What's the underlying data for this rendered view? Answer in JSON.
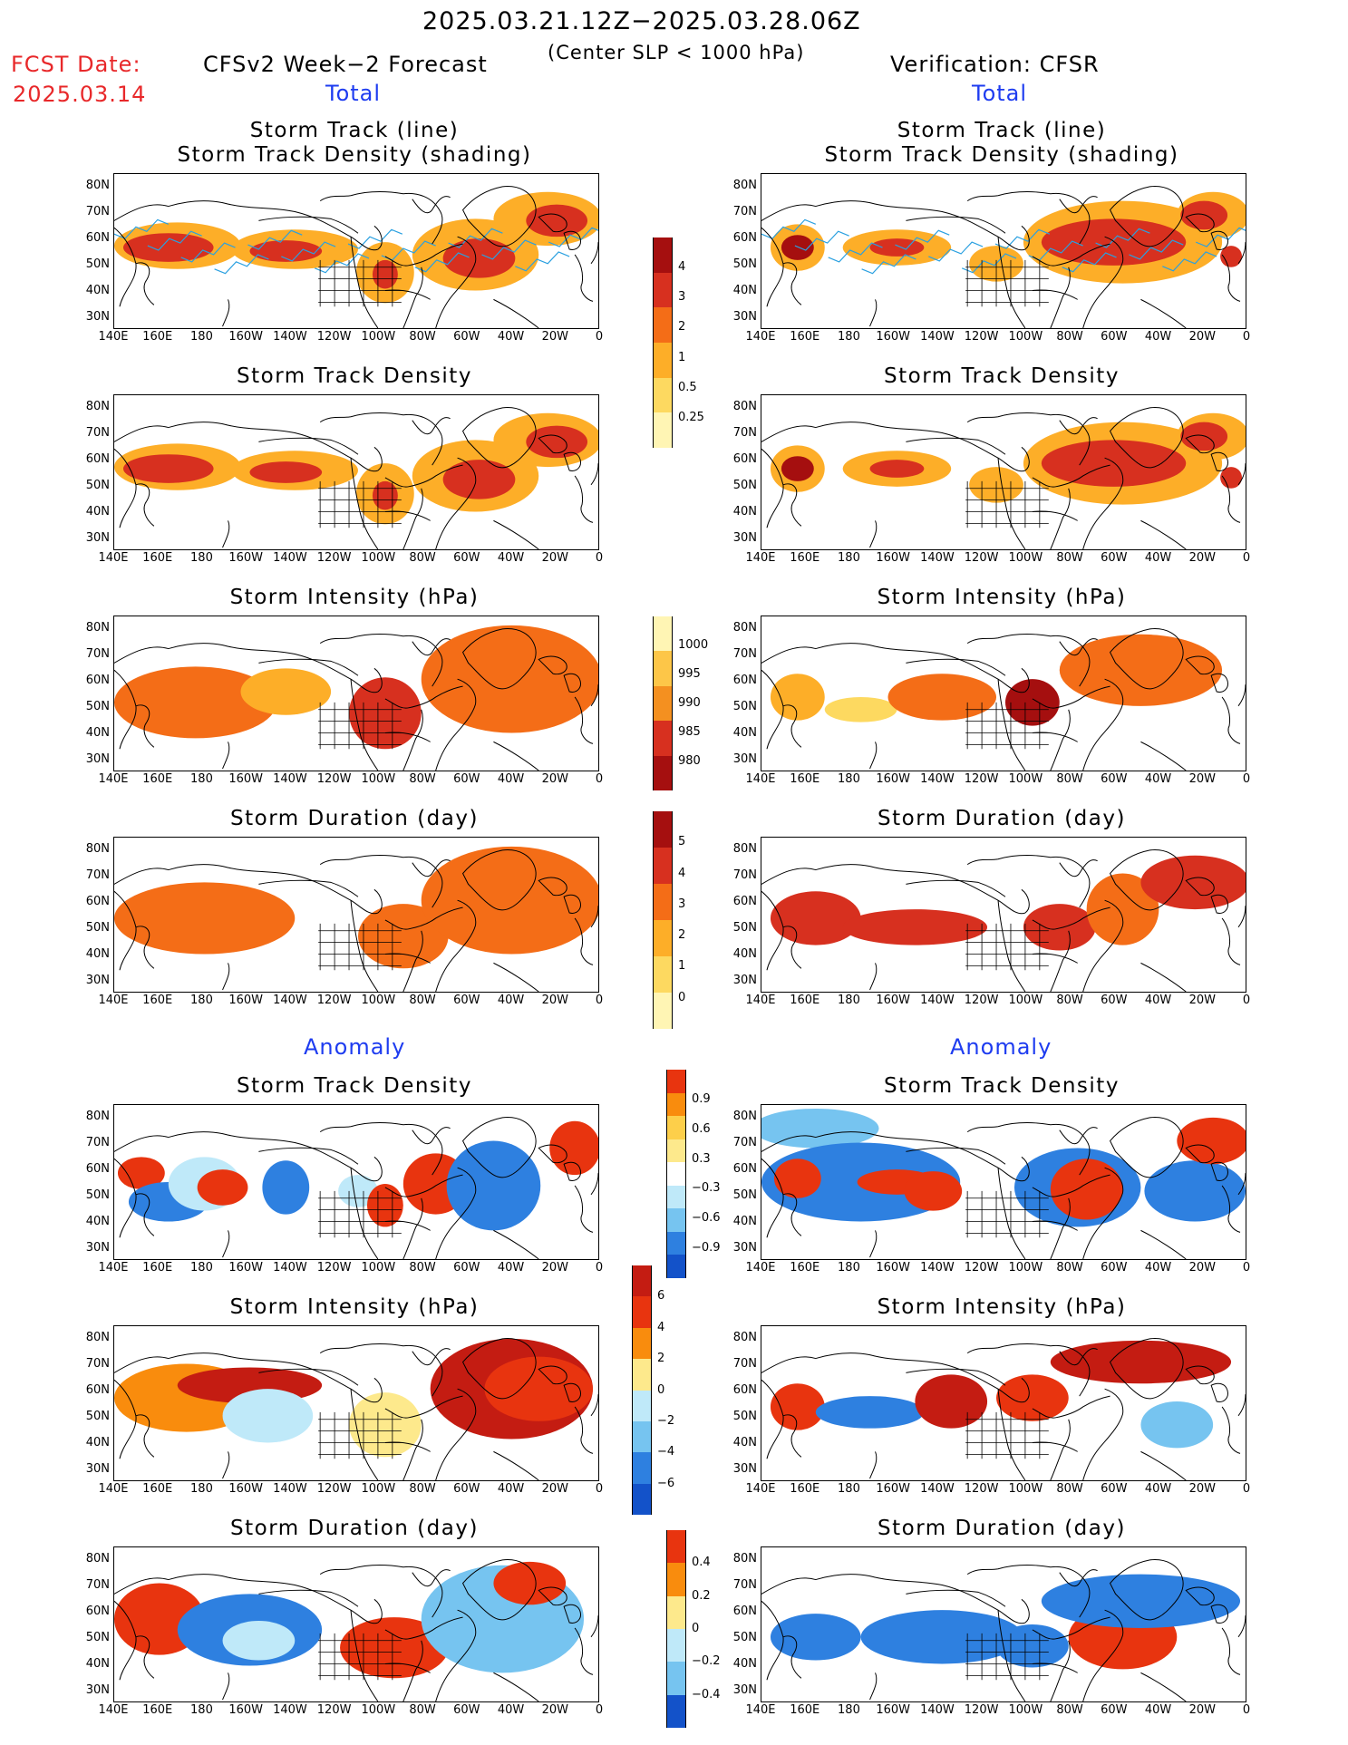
{
  "header": {
    "period": "2025.03.21.12Z−2025.03.28.06Z",
    "criterion": "(Center SLP < 1000 hPa)",
    "fcst_label": "FCST Date:",
    "fcst_date": "2025.03.14",
    "forecast_title": "CFSv2 Week−2 Forecast",
    "verification_title": "Verification: CFSR",
    "total_label": "Total",
    "anomaly_label": "Anomaly"
  },
  "panels": {
    "track_line": "Storm Track (line)",
    "track_density_shading": "Storm Track Density (shading)",
    "track_density": "Storm Track Density",
    "intensity": "Storm Intensity (hPa)",
    "duration": "Storm Duration (day)"
  },
  "axes": {
    "lat_ticks": [
      "80N",
      "70N",
      "60N",
      "50N",
      "40N",
      "30N"
    ],
    "lon_ticks": [
      "140E",
      "160E",
      "180",
      "160W",
      "140W",
      "120W",
      "100W",
      "80W",
      "60W",
      "40W",
      "20W",
      "0"
    ]
  },
  "colorbars": {
    "density": {
      "labels": [
        "4",
        "3",
        "2",
        "1",
        "0.5",
        "0.25"
      ],
      "colors": [
        "#a50f0f",
        "#d7301f",
        "#f46d17",
        "#fdae28",
        "#fdd960",
        "#fff5b4"
      ]
    },
    "intensity": {
      "labels": [
        "1000",
        "995",
        "990",
        "985",
        "980"
      ],
      "colors": [
        "#fff5b4",
        "#fdc648",
        "#f49020",
        "#d7301f",
        "#a50f0f"
      ]
    },
    "duration": {
      "labels": [
        "5",
        "4",
        "3",
        "2",
        "1",
        "0"
      ],
      "colors": [
        "#a50f0f",
        "#d7301f",
        "#f46d17",
        "#fdae28",
        "#fdd960",
        "#fff5b4"
      ]
    },
    "anom_density": {
      "labels": [
        "0.9",
        "0.6",
        "0.3",
        "−0.3",
        "−0.6",
        "−0.9"
      ],
      "colors": [
        "#e8340f",
        "#f98c0d",
        "#fdcf4a",
        "#fde98c",
        "#ffffff",
        "#bfe9f9",
        "#76c4f0",
        "#2e80e0",
        "#1352c9"
      ]
    },
    "anom_intensity": {
      "labels": [
        "6",
        "4",
        "2",
        "0",
        "−2",
        "−4",
        "−6"
      ],
      "colors": [
        "#c41c12",
        "#e8340f",
        "#f98c0d",
        "#fde98c",
        "#bfe9f9",
        "#76c4f0",
        "#2e80e0",
        "#1352c9"
      ]
    },
    "anom_duration": {
      "labels": [
        "0.4",
        "0.2",
        "0",
        "−0.2",
        "−0.4"
      ],
      "colors": [
        "#e8340f",
        "#f98c0d",
        "#fde98c",
        "#bfe9f9",
        "#76c4f0",
        "#1352c9"
      ]
    }
  },
  "colors": {
    "coast": "#000000",
    "track_line": "#2aa0e0"
  }
}
